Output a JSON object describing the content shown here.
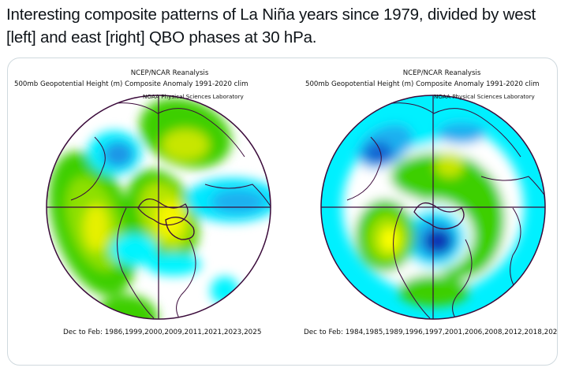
{
  "tweet": {
    "text": "Interesting composite patterns of La Niña years since 1979, divided by west [left] and east [right] QBO phases at 30 hPa."
  },
  "panels": [
    {
      "title_line1": "NCEP/NCAR Reanalysis",
      "title_line2": "500mb Geopotential Height (m) Composite Anomaly 1991-2020 clim",
      "lab": "NOAA Physical Sciences Laboratory",
      "footer": "Dec to Feb: 1986,1999,2000,2009,2011,2021,2023,2025",
      "qbo_phase": "west"
    },
    {
      "title_line1": "NCEP/NCAR Reanalysis",
      "title_line2": "500mb Geopotential Height (m) Composite Anomaly 1991-2020 clim",
      "lab": "NOAA Physical Sciences Laboratory",
      "footer": "Dec to Feb: 1984,1985,1989,1996,1997,2001,2006,2008,2012,2018,202",
      "qbo_phase": "east"
    }
  ],
  "colors": {
    "positive_strong": "#ffff00",
    "positive_mid": "#c8e600",
    "positive_weak": "#3ccf00",
    "negative_weak": "#00ffff",
    "negative_mid": "#1fb6f0",
    "negative_strong": "#1464d2",
    "negative_deep": "#0a32b4",
    "coastline": "#3a0a3a"
  }
}
